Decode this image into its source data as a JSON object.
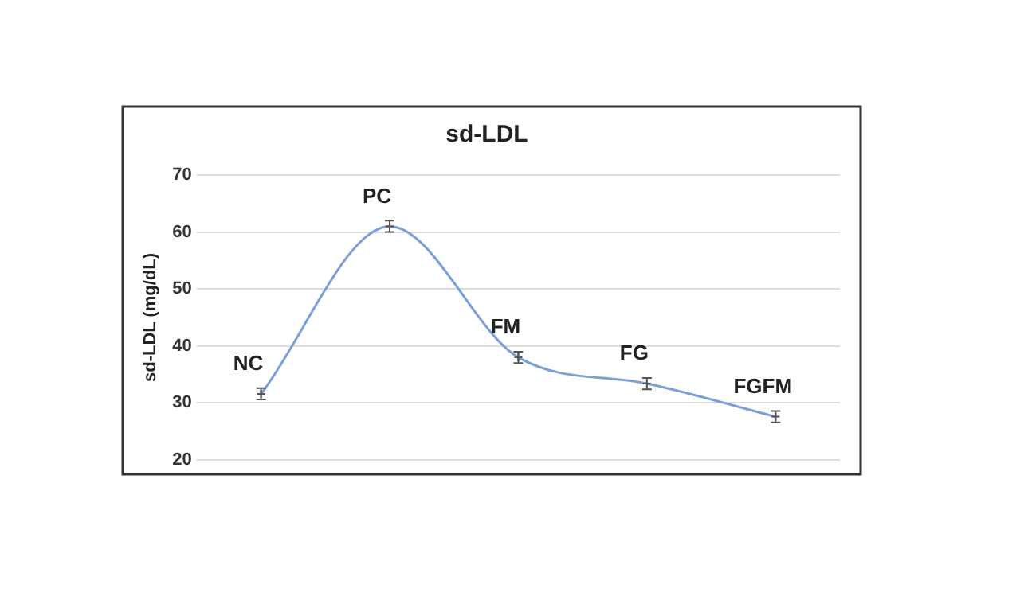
{
  "chart_data": {
    "type": "line",
    "title": "sd-LDL",
    "ylabel": "sd-LDL (mg/dL)",
    "categories": [
      "NC",
      "PC",
      "FM",
      "FG",
      "FGFM"
    ],
    "series": [
      {
        "color": "#7aa0d8",
        "values": [
          31.6,
          61,
          38,
          33.4,
          27.6
        ],
        "errors": [
          1,
          1,
          1,
          1,
          1
        ]
      }
    ],
    "ylim": [
      20,
      70
    ],
    "yticks": [
      20,
      30,
      40,
      50,
      60,
      70
    ],
    "grid": "y",
    "legend": false,
    "tick_labels": "y",
    "marker": "cross",
    "line_style": "solid"
  }
}
